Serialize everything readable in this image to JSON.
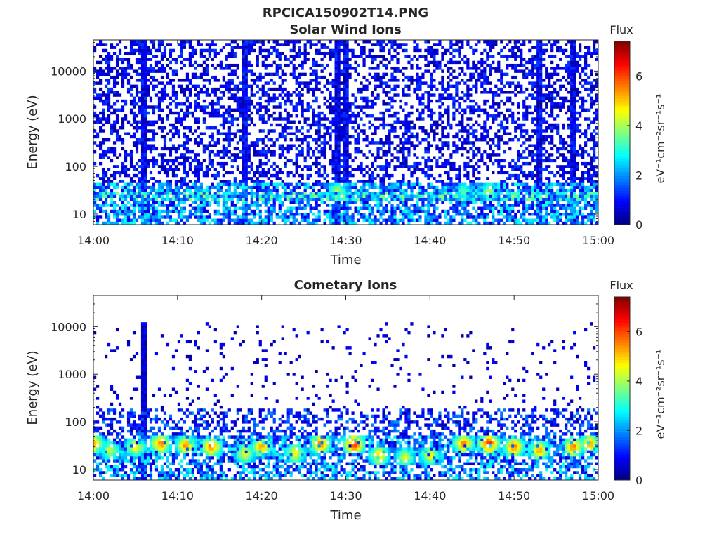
{
  "figure_title": "RPCICA150902T14.PNG",
  "colors": {
    "colormap": "jet",
    "axis": "#262626",
    "background": "#ffffff"
  },
  "chart_data": [
    {
      "type": "heatmap",
      "title": "Solar Wind Ions",
      "xlabel": "Time",
      "ylabel": "Energy (eV)",
      "yscale": "log",
      "ylim": [
        6,
        45000
      ],
      "xlim": [
        "14:00",
        "15:00"
      ],
      "x_ticks": [
        "14:00",
        "14:10",
        "14:20",
        "14:30",
        "14:40",
        "14:50",
        "15:00"
      ],
      "y_ticks": [
        "10",
        "100",
        "1000",
        "10000"
      ],
      "y_tick_values": [
        10,
        100,
        1000,
        10000
      ],
      "colorbar": {
        "title": "Flux",
        "label": "eV⁻¹cm⁻²sr⁻¹s⁻¹",
        "range": [
          0,
          7.4
        ],
        "ticks": [
          "0",
          "2",
          "4",
          "6"
        ],
        "tick_values": [
          0,
          2,
          4,
          6
        ]
      },
      "bands": [
        {
          "energy_range": [
            45,
            45000
          ],
          "coverage": 0.45,
          "flux_range": [
            0.2,
            1.4
          ]
        },
        {
          "energy_range": [
            30,
            100
          ],
          "coverage": 0.75,
          "flux_range": [
            0.6,
            3.0
          ]
        },
        {
          "energy_range": [
            20,
            45
          ],
          "coverage": 0.85,
          "flux_range": [
            1.0,
            3.8
          ]
        },
        {
          "energy_range": [
            6,
            20
          ],
          "coverage": 0.65,
          "flux_range": [
            0.6,
            3.0
          ]
        }
      ],
      "hotspots": [
        {
          "time": "14:29",
          "energy": 30,
          "flux": 4.2
        },
        {
          "time": "14:44",
          "energy": 30,
          "flux": 3.6
        },
        {
          "time": "14:47",
          "energy": 30,
          "flux": 4.0
        }
      ],
      "spikes": [
        "14:06",
        "14:18",
        "14:29",
        "14:30",
        "14:53",
        "14:57"
      ]
    },
    {
      "type": "heatmap",
      "title": "Cometary Ions",
      "xlabel": "Time",
      "ylabel": "Energy (eV)",
      "yscale": "log",
      "ylim": [
        6,
        45000
      ],
      "xlim": [
        "14:00",
        "15:00"
      ],
      "x_ticks": [
        "14:00",
        "14:10",
        "14:20",
        "14:30",
        "14:40",
        "14:50",
        "15:00"
      ],
      "y_ticks": [
        "10",
        "100",
        "1000",
        "10000"
      ],
      "y_tick_values": [
        10,
        100,
        1000,
        10000
      ],
      "colorbar": {
        "title": "Flux",
        "label": "eV⁻¹cm⁻²sr⁻¹s⁻¹",
        "range": [
          0,
          7.4
        ],
        "ticks": [
          "0",
          "2",
          "4",
          "6"
        ],
        "tick_values": [
          0,
          2,
          4,
          6
        ]
      },
      "bands": [
        {
          "energy_range": [
            200,
            12000
          ],
          "coverage": 0.05,
          "flux_range": [
            0.2,
            1.0
          ]
        },
        {
          "energy_range": [
            55,
            200
          ],
          "coverage": 0.45,
          "flux_range": [
            0.3,
            2.0
          ]
        },
        {
          "energy_range": [
            18,
            55
          ],
          "coverage": 0.7,
          "flux_range": [
            0.6,
            3.0
          ]
        },
        {
          "energy_range": [
            6,
            18
          ],
          "coverage": 0.55,
          "flux_range": [
            0.5,
            3.0
          ]
        }
      ],
      "hotspots": [
        {
          "time": "14:00",
          "energy": 35,
          "flux": 5.5
        },
        {
          "time": "14:02",
          "energy": 25,
          "flux": 4.5
        },
        {
          "time": "14:05",
          "energy": 30,
          "flux": 5.0
        },
        {
          "time": "14:08",
          "energy": 35,
          "flux": 5.8
        },
        {
          "time": "14:11",
          "energy": 32,
          "flux": 5.6
        },
        {
          "time": "14:14",
          "energy": 30,
          "flux": 6.0
        },
        {
          "time": "14:18",
          "energy": 22,
          "flux": 4.8
        },
        {
          "time": "14:20",
          "energy": 30,
          "flux": 5.5
        },
        {
          "time": "14:24",
          "energy": 22,
          "flux": 5.0
        },
        {
          "time": "14:27",
          "energy": 35,
          "flux": 6.0
        },
        {
          "time": "14:31",
          "energy": 33,
          "flux": 6.5
        },
        {
          "time": "14:34",
          "energy": 20,
          "flux": 5.2
        },
        {
          "time": "14:37",
          "energy": 18,
          "flux": 4.5
        },
        {
          "time": "14:40",
          "energy": 20,
          "flux": 4.8
        },
        {
          "time": "14:44",
          "energy": 35,
          "flux": 5.8
        },
        {
          "time": "14:47",
          "energy": 35,
          "flux": 6.5
        },
        {
          "time": "14:50",
          "energy": 30,
          "flux": 6.0
        },
        {
          "time": "14:53",
          "energy": 25,
          "flux": 5.5
        },
        {
          "time": "14:57",
          "energy": 30,
          "flux": 5.8
        },
        {
          "time": "14:59",
          "energy": 35,
          "flux": 5.5
        }
      ],
      "spikes": [
        "14:06"
      ]
    }
  ]
}
